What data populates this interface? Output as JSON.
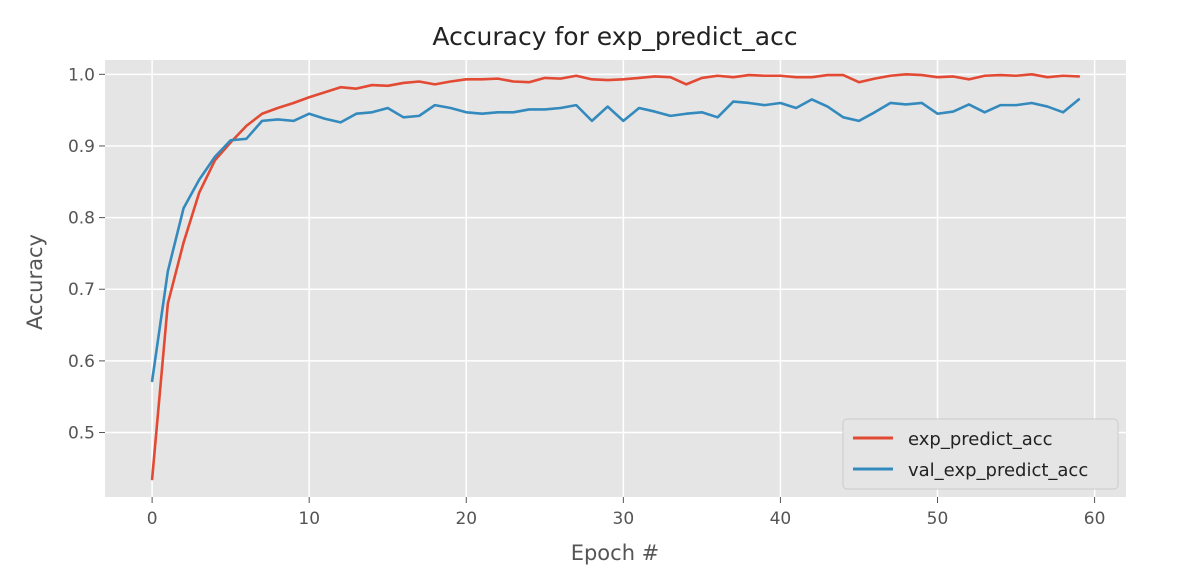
{
  "chart_data": {
    "type": "line",
    "title": "Accuracy for exp_predict_acc",
    "xlabel": "Epoch #",
    "ylabel": "Accuracy",
    "xlim": [
      -3,
      62
    ],
    "ylim": [
      0.41,
      1.02
    ],
    "xticks": [
      0,
      10,
      20,
      30,
      40,
      50,
      60
    ],
    "yticks": [
      0.5,
      0.6,
      0.7,
      0.8,
      0.9,
      1.0
    ],
    "xtick_labels": [
      "0",
      "10",
      "20",
      "30",
      "40",
      "50",
      "60"
    ],
    "ytick_labels": [
      "0.5",
      "0.6",
      "0.7",
      "0.8",
      "0.9",
      "1.0"
    ],
    "grid": true,
    "legend_position": "lower-right",
    "x": [
      0,
      1,
      2,
      3,
      4,
      5,
      6,
      7,
      8,
      9,
      10,
      11,
      12,
      13,
      14,
      15,
      16,
      17,
      18,
      19,
      20,
      21,
      22,
      23,
      24,
      25,
      26,
      27,
      28,
      29,
      30,
      31,
      32,
      33,
      34,
      35,
      36,
      37,
      38,
      39,
      40,
      41,
      42,
      43,
      44,
      45,
      46,
      47,
      48,
      49,
      50,
      51,
      52,
      53,
      54,
      55,
      56,
      57,
      58,
      59
    ],
    "series": [
      {
        "name": "exp_predict_acc",
        "color": "#e24a33",
        "values": [
          0.435,
          0.68,
          0.765,
          0.835,
          0.88,
          0.905,
          0.928,
          0.945,
          0.953,
          0.96,
          0.968,
          0.975,
          0.982,
          0.98,
          0.985,
          0.984,
          0.988,
          0.99,
          0.986,
          0.99,
          0.993,
          0.993,
          0.994,
          0.99,
          0.989,
          0.995,
          0.994,
          0.998,
          0.993,
          0.992,
          0.993,
          0.995,
          0.997,
          0.996,
          0.986,
          0.995,
          0.998,
          0.996,
          0.999,
          0.998,
          0.998,
          0.996,
          0.996,
          0.999,
          0.999,
          0.989,
          0.994,
          0.998,
          1.0,
          0.999,
          0.996,
          0.997,
          0.993,
          0.998,
          0.999,
          0.998,
          1.0,
          0.996,
          0.998,
          0.997
        ]
      },
      {
        "name": "val_exp_predict_acc",
        "color": "#348abd",
        "values": [
          0.572,
          0.725,
          0.813,
          0.853,
          0.885,
          0.908,
          0.91,
          0.935,
          0.937,
          0.935,
          0.945,
          0.938,
          0.933,
          0.945,
          0.947,
          0.953,
          0.94,
          0.942,
          0.957,
          0.953,
          0.947,
          0.945,
          0.947,
          0.947,
          0.951,
          0.951,
          0.953,
          0.957,
          0.935,
          0.955,
          0.935,
          0.953,
          0.948,
          0.942,
          0.945,
          0.947,
          0.94,
          0.962,
          0.96,
          0.957,
          0.96,
          0.953,
          0.965,
          0.955,
          0.94,
          0.935,
          0.947,
          0.96,
          0.958,
          0.96,
          0.945,
          0.948,
          0.958,
          0.947,
          0.957,
          0.957,
          0.96,
          0.955,
          0.947,
          0.965
        ]
      }
    ]
  }
}
